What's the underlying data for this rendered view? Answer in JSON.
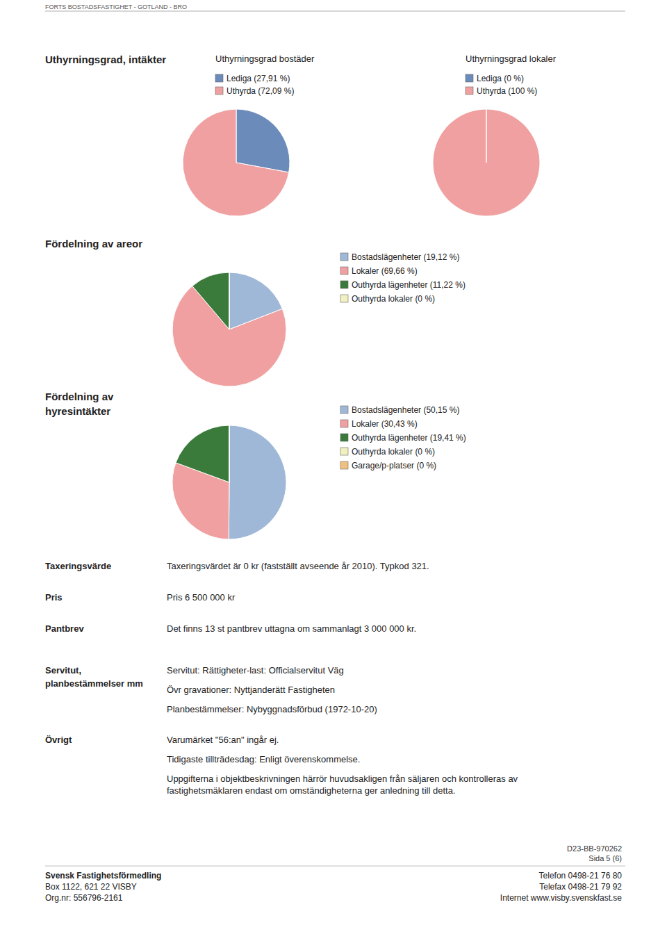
{
  "chart_data": [
    {
      "type": "pie",
      "title": "Uthyrningsgrad bostäder",
      "categories": [
        "Lediga (27,91 %)",
        "Uthyrda (72,09 %)"
      ],
      "values": [
        27.91,
        72.09
      ],
      "colors": [
        "#6b8cba",
        "#f0a0a0"
      ],
      "legend": "top"
    },
    {
      "type": "pie",
      "title": "Uthyrningsgrad lokaler",
      "categories": [
        "Lediga (0 %)",
        "Uthyrda (100 %)"
      ],
      "values": [
        0.001,
        99.999
      ],
      "colors": [
        "#6b8cba",
        "#f0a0a0"
      ],
      "legend": "top"
    },
    {
      "type": "pie",
      "categories": [
        "Bostadslägenheter (19,12 %)",
        "Lokaler (69,66 %)",
        "Outhyrda lägenheter (11,22 %)",
        "Outhyrda lokaler (0 %)"
      ],
      "values": [
        19.12,
        69.66,
        11.22,
        0.001
      ],
      "colors": [
        "#a0b8d8",
        "#f0a0a0",
        "#3a7a3a",
        "#f0f0c0"
      ],
      "legend": "right"
    },
    {
      "type": "pie",
      "categories": [
        "Bostadslägenheter (50,15 %)",
        "Lokaler (30,43 %)",
        "Outhyrda lägenheter (19,41 %)",
        "Outhyrda lokaler (0 %)",
        "Garage/p-platser (0 %)"
      ],
      "values": [
        50.15,
        30.43,
        19.41,
        0.001,
        0.001
      ],
      "colors": [
        "#a0b8d8",
        "#f0a0a0",
        "#3a7a3a",
        "#f0f0c0",
        "#f0c080"
      ],
      "legend": "right"
    }
  ],
  "page": {
    "header": "FORTS BOSTADSFASTIGHET - GOTLAND - BRO",
    "section_labels": [
      "Uthyrningsgrad, intäkter",
      "Fördelning av areor",
      "Fördelning av\nhyresintäkter"
    ],
    "details": [
      {
        "label": "Taxeringsvärde",
        "lines": [
          "Taxeringsvärdet är 0 kr (fastställt avseende år 2010). Typkod 321."
        ]
      },
      {
        "label": "Pris",
        "lines": [
          "Pris 6 500 000 kr"
        ]
      },
      {
        "label": "Pantbrev",
        "lines": [
          "Det finns 13 st pantbrev uttagna om sammanlagt 3 000 000 kr."
        ]
      },
      {
        "label": "Servitut,\nplanbestämmelser mm",
        "lines": [
          "Servitut: Rättigheter-last: Officialservitut Väg",
          "Övr gravationer: Nyttjanderätt Fastigheten",
          "Planbestämmelser: Nybyggnadsförbud (1972-10-20)"
        ]
      },
      {
        "label": "Övrigt",
        "lines": [
          "Varumärket \"56:an\" ingår ej.",
          "Tidigaste tillträdesdag: Enligt överenskommelse.",
          "Uppgifterna i objektbeskrivningen härrör huvudsakligen från säljaren och kontrolleras av\nfastighetsmäklaren endast om omständigheterna ger anledning till detta."
        ]
      }
    ],
    "footer": {
      "ref": "D23-BB-970262",
      "page": "Sida 5 (6)",
      "left": [
        "Svensk Fastighetsförmedling",
        "Box 1122, 621 22  VISBY",
        "Org.nr: 556796-2161"
      ],
      "right": [
        "Telefon 0498-21 76 80",
        "Telefax 0498-21 79 92",
        "Internet www.visby.svenskfast.se"
      ]
    }
  }
}
